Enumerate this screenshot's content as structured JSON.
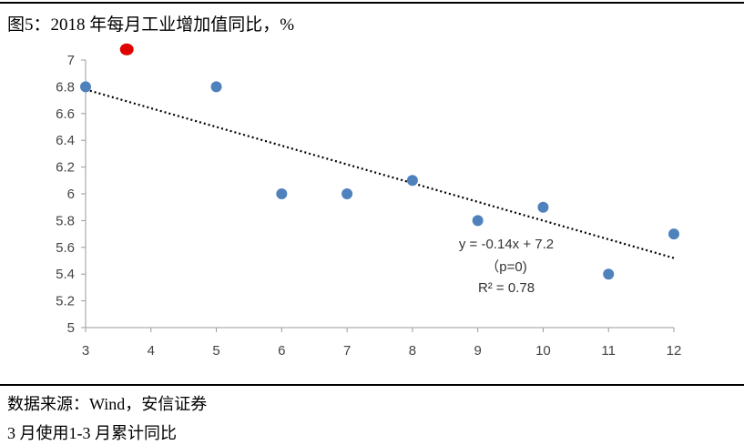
{
  "header": {
    "title": "图5：2018 年每月工业增加值同比，%"
  },
  "footer": {
    "source": "数据来源：Wind，安信证券",
    "note": "3 月使用1-3 月累计同比"
  },
  "colors": {
    "point": "#4f81bd",
    "highlight": "#e00000",
    "trendline": "#000000",
    "axis": "#999999"
  },
  "chart_data": {
    "type": "scatter",
    "title": "2018 年每月工业增加值同比，%",
    "xlabel": "",
    "ylabel": "",
    "xlim": [
      3,
      12
    ],
    "ylim": [
      5,
      7
    ],
    "x_ticks": [
      3,
      4,
      5,
      6,
      7,
      8,
      9,
      10,
      11,
      12
    ],
    "y_ticks": [
      5,
      5.2,
      5.4,
      5.6,
      5.8,
      6,
      6.2,
      6.4,
      6.6,
      6.8,
      7
    ],
    "y_tick_labels": [
      "5",
      "5.2",
      "5.4",
      "5.6",
      "5.8",
      "6",
      "6.2",
      "6.4",
      "6.6",
      "6.8",
      "7"
    ],
    "grid": false,
    "series": [
      {
        "name": "工业增加值同比",
        "x": [
          3,
          5,
          6,
          7,
          8,
          9,
          10,
          11,
          12
        ],
        "y": [
          6.8,
          6.8,
          6.0,
          6.0,
          6.1,
          5.8,
          5.9,
          5.4,
          5.7
        ]
      }
    ],
    "highlight_marker": {
      "x": 3.63,
      "y": 7.08
    },
    "trendline": {
      "slope": -0.14,
      "intercept": 7.2,
      "x_range": [
        3,
        12
      ],
      "equation_label": "y = -0.14x + 7.2",
      "p_label": "（p=0)",
      "r2_label": "R² = 0.78"
    }
  }
}
